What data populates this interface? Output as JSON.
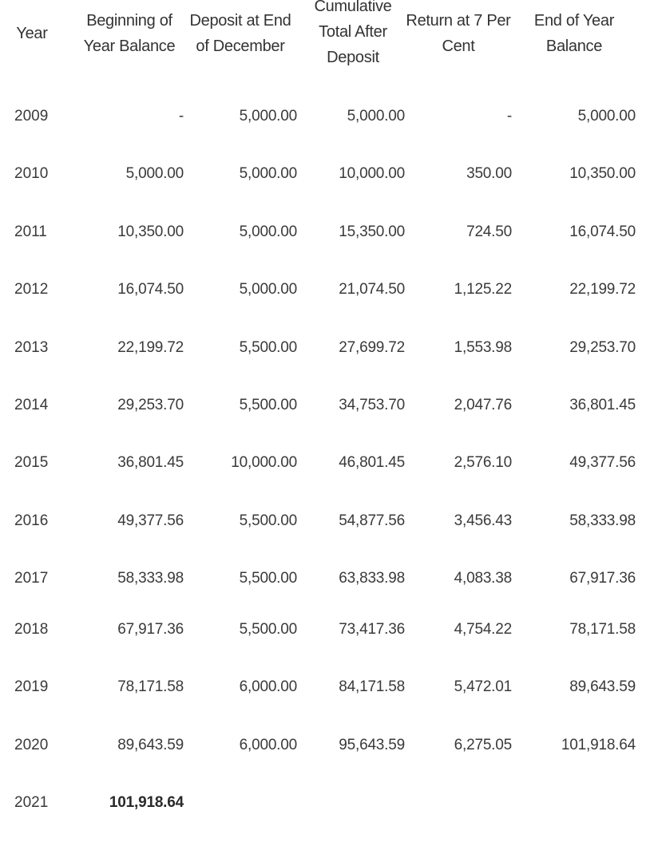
{
  "table": {
    "headers": [
      "Year",
      "Beginning of Year Balance",
      "Deposit at End of December",
      "Cumulative Total After Deposit",
      "Return at 7 Per Cent",
      "End of Year Balance"
    ],
    "rows": [
      [
        "2009",
        "-",
        "5,000.00",
        "5,000.00",
        "-",
        "5,000.00"
      ],
      [
        "2010",
        "5,000.00",
        "5,000.00",
        "10,000.00",
        "350.00",
        "10,350.00"
      ],
      [
        "2011",
        "10,350.00",
        "5,000.00",
        "15,350.00",
        "724.50",
        "16,074.50"
      ],
      [
        "2012",
        "16,074.50",
        "5,000.00",
        "21,074.50",
        "1,125.22",
        "22,199.72"
      ],
      [
        "2013",
        "22,199.72",
        "5,500.00",
        "27,699.72",
        "1,553.98",
        "29,253.70"
      ],
      [
        "2014",
        "29,253.70",
        "5,500.00",
        "34,753.70",
        "2,047.76",
        "36,801.45"
      ],
      [
        "2015",
        "36,801.45",
        "10,000.00",
        "46,801.45",
        "2,576.10",
        "49,377.56"
      ],
      [
        "2016",
        "49,377.56",
        "5,500.00",
        "54,877.56",
        "3,456.43",
        "58,333.98"
      ],
      [
        "2017",
        "58,333.98",
        "5,500.00",
        "63,833.98",
        "4,083.38",
        "67,917.36"
      ],
      [
        "2018",
        "67,917.36",
        "5,500.00",
        "73,417.36",
        "4,754.22",
        "78,171.58"
      ],
      [
        "2019",
        "78,171.58",
        "6,000.00",
        "84,171.58",
        "5,472.01",
        "89,643.59"
      ],
      [
        "2020",
        "89,643.59",
        "6,000.00",
        "95,643.59",
        "6,275.05",
        "101,918.64"
      ],
      [
        "2021",
        "101,918.64",
        "",
        "",
        "",
        ""
      ]
    ]
  }
}
